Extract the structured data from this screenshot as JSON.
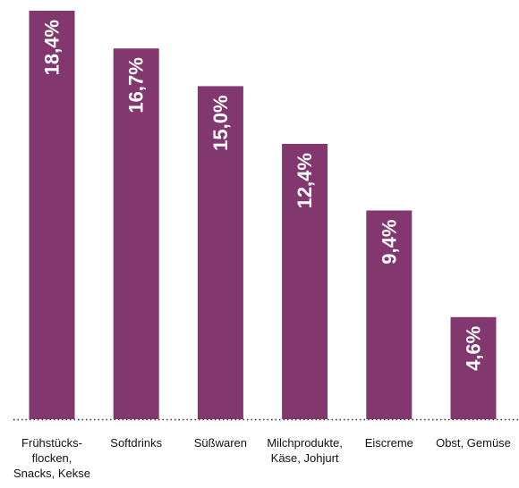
{
  "chart_data": {
    "type": "bar",
    "categories": [
      [
        "Frühstücks-",
        "flocken,",
        "Snacks, Kekse"
      ],
      [
        "Softdrinks"
      ],
      [
        "Süßwaren"
      ],
      [
        "Milchprodukte,",
        "Käse, Johjurt"
      ],
      [
        "Eiscreme"
      ],
      [
        "Obst, Gemüse"
      ]
    ],
    "values": [
      18.4,
      16.7,
      15.0,
      12.4,
      9.4,
      4.6
    ],
    "value_labels": [
      "18,4%",
      "16,7%",
      "15,0%",
      "12,4%",
      "9,4%",
      "4,6%"
    ],
    "title": "",
    "xlabel": "",
    "ylabel": "",
    "ylim": [
      0,
      18.4
    ],
    "grid": false,
    "baseline_style": "dotted",
    "colors": {
      "bar": "#82386f",
      "label": "#ffffff",
      "text": "#111111",
      "baseline": "#333333"
    }
  }
}
